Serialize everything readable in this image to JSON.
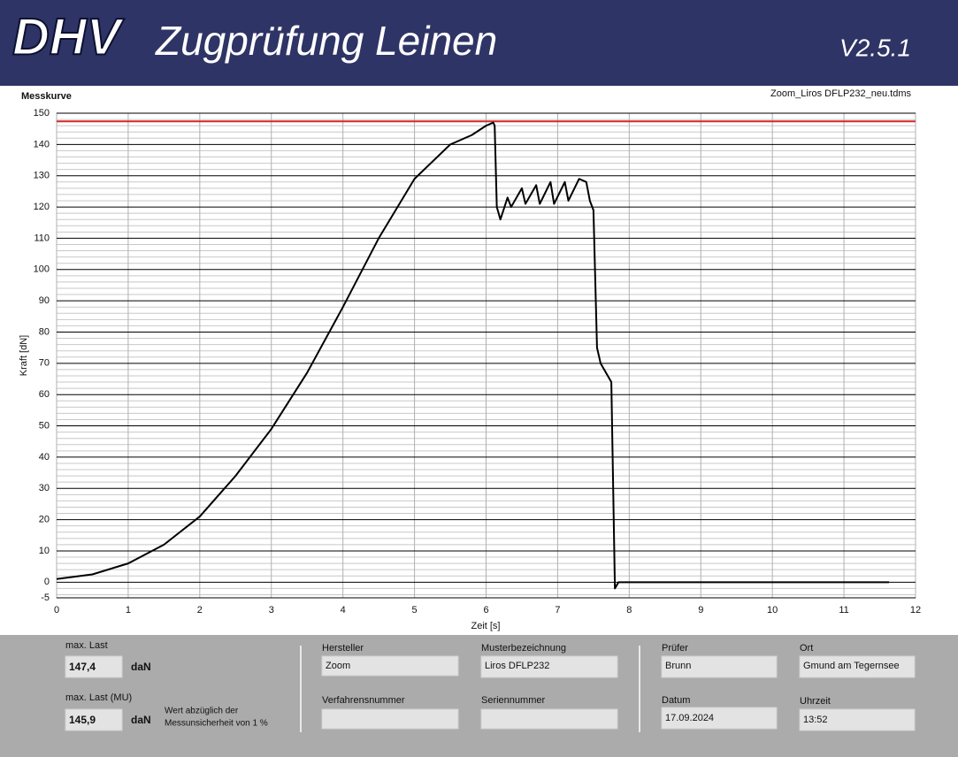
{
  "header": {
    "logo": "DHV",
    "title": "Zugprüfung Leinen",
    "version": "V2.5.1"
  },
  "chart_data": {
    "type": "line",
    "title": "Messkurve",
    "file": "Zoom_Liros DFLP232_neu.tdms",
    "x_label": "Zeit [s]",
    "y_label": "Kraft [dN]",
    "color": "#000000",
    "x": [
      0,
      0.5,
      1,
      1.5,
      2,
      2.5,
      3,
      3.5,
      4,
      4.5,
      5,
      5.5,
      5.8,
      6.0,
      6.1,
      6.12,
      6.15,
      6.2,
      6.3,
      6.35,
      6.5,
      6.55,
      6.7,
      6.75,
      6.9,
      6.95,
      7.1,
      7.15,
      7.3,
      7.4,
      7.45,
      7.5,
      7.55,
      7.6,
      7.75,
      7.8,
      7.85,
      11.63
    ],
    "values": [
      1,
      2.5,
      6,
      12,
      21,
      34,
      49,
      67,
      88,
      110,
      129,
      140,
      143,
      146,
      147,
      146,
      120,
      116,
      123,
      120,
      126,
      121,
      127,
      121,
      128,
      121,
      128,
      122,
      129,
      128,
      122,
      119,
      75,
      70,
      64,
      -2,
      0,
      0
    ],
    "reference_line": {
      "value": 147.4,
      "color": "#d42a2a"
    },
    "xlim": [
      0,
      12
    ],
    "ylim": [
      -5,
      150
    ],
    "xticks": [
      0,
      1,
      2,
      3,
      4,
      5,
      6,
      7,
      8,
      9,
      10,
      11,
      12
    ],
    "yticks": [
      -5,
      0,
      10,
      20,
      30,
      40,
      50,
      60,
      70,
      80,
      90,
      100,
      110,
      120,
      130,
      140,
      150
    ],
    "yminorticks": [
      -4,
      -2,
      2,
      4,
      6,
      8,
      12,
      14,
      16,
      18,
      22,
      24,
      26,
      28,
      32,
      34,
      36,
      38,
      42,
      44,
      46,
      48,
      52,
      54,
      56,
      58,
      62,
      64,
      66,
      68,
      72,
      74,
      76,
      78,
      82,
      84,
      86,
      88,
      92,
      94,
      96,
      98,
      102,
      104,
      106,
      108,
      112,
      114,
      116,
      118,
      122,
      124,
      126,
      128,
      132,
      134,
      136,
      138,
      142,
      144,
      146,
      148
    ],
    "grid": true
  },
  "results": {
    "max_last_label": "max. Last",
    "max_last": "147,4",
    "max_last_mu_label": "max. Last (MU)",
    "max_last_mu": "145,9",
    "unit": "daN",
    "note": [
      "Wert abzüglich der",
      "Messunsicherheit von 1 %"
    ]
  },
  "fields": {
    "hersteller_label": "Hersteller",
    "hersteller": "Zoom",
    "verfahrensnummer_label": "Verfahrensnummer",
    "musterbezeichnung_label": "Musterbezeichnung",
    "musterbezeichnung": "Liros DFLP232",
    "seriennummer_label": "Seriennummer",
    "pruefer_label": "Prüfer",
    "pruefer": "Brunn",
    "datum_label": "Datum",
    "datum": "17.09.2024",
    "ort_label": "Ort",
    "ort": "Gmund am Tegernsee",
    "uhrzeit_label": "Uhrzeit",
    "uhrzeit": "13:52"
  }
}
